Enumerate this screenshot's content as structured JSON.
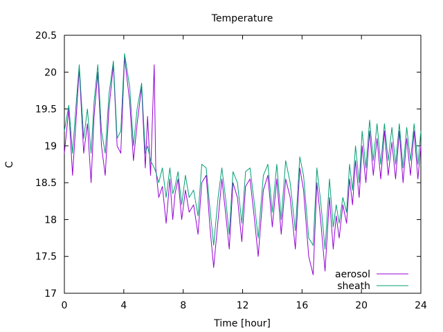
{
  "chart_data": {
    "type": "line",
    "title": "Temperature",
    "xlabel": "Time [hour]",
    "ylabel": "C",
    "xlim": [
      0,
      24
    ],
    "ylim": [
      17,
      20.5
    ],
    "x_ticks": [
      0,
      4,
      8,
      12,
      16,
      20,
      24
    ],
    "x_tick_labels": [
      "0",
      "4",
      "8",
      "12",
      "16",
      "20",
      "24"
    ],
    "y_ticks": [
      17,
      17.5,
      18,
      18.5,
      19,
      19.5,
      20,
      20.5
    ],
    "y_tick_labels": [
      "17",
      "17.5",
      "18",
      "18.5",
      "19",
      "19.5",
      "20",
      "20.5"
    ],
    "grid": false,
    "legend_position": "bottom-right",
    "series": [
      {
        "name": "aerosol",
        "color": "#9400d3",
        "x": [
          0,
          0.3,
          0.55,
          0.8,
          1.0,
          1.3,
          1.55,
          1.8,
          2.0,
          2.25,
          2.5,
          2.75,
          3.0,
          3.3,
          3.55,
          3.8,
          4.05,
          4.4,
          4.65,
          4.9,
          5.2,
          5.45,
          5.6,
          5.8,
          6.05,
          6.15,
          6.35,
          6.6,
          6.85,
          7.1,
          7.3,
          7.45,
          7.65,
          7.9,
          8.15,
          8.4,
          8.7,
          9.0,
          9.25,
          9.55,
          9.8,
          10.05,
          10.35,
          10.6,
          10.85,
          11.1,
          11.35,
          11.65,
          11.95,
          12.2,
          12.5,
          12.8,
          13.05,
          13.4,
          13.7,
          14.0,
          14.3,
          14.6,
          14.9,
          15.2,
          15.55,
          15.85,
          16.1,
          16.45,
          16.75,
          17.0,
          17.25,
          17.55,
          17.85,
          18.1,
          18.3,
          18.5,
          18.75,
          19.0,
          19.2,
          19.4,
          19.6,
          19.85,
          20.05,
          20.3,
          20.55,
          20.8,
          21.05,
          21.3,
          21.55,
          21.8,
          22.05,
          22.3,
          22.55,
          22.8,
          23.05,
          23.3,
          23.55,
          23.8,
          24.0
        ],
        "values": [
          18.9,
          19.5,
          18.6,
          19.4,
          20.05,
          18.9,
          19.3,
          18.5,
          19.4,
          20.0,
          19.0,
          18.6,
          19.5,
          20.1,
          19.0,
          18.9,
          20.2,
          19.6,
          18.8,
          19.3,
          19.8,
          18.7,
          19.4,
          18.6,
          20.1,
          18.7,
          18.3,
          18.45,
          17.95,
          18.55,
          18.0,
          18.35,
          18.55,
          18.0,
          18.4,
          18.1,
          18.2,
          17.8,
          18.5,
          18.6,
          17.9,
          17.35,
          18.0,
          18.55,
          18.1,
          17.6,
          18.5,
          18.3,
          17.7,
          18.45,
          18.55,
          18.0,
          17.5,
          18.4,
          18.6,
          17.9,
          18.55,
          17.8,
          18.55,
          18.3,
          17.6,
          18.7,
          18.4,
          17.5,
          17.25,
          18.5,
          18.0,
          17.3,
          18.3,
          17.6,
          18.05,
          17.75,
          18.2,
          17.95,
          18.55,
          18.2,
          18.8,
          18.3,
          19.0,
          18.5,
          19.2,
          18.6,
          19.1,
          18.55,
          19.2,
          18.6,
          19.05,
          18.55,
          19.2,
          18.5,
          19.1,
          18.6,
          19.2,
          18.55,
          19.0
        ]
      },
      {
        "name": "sheath",
        "color": "#009e73",
        "x": [
          0,
          0.3,
          0.55,
          0.8,
          1.0,
          1.3,
          1.55,
          1.8,
          2.0,
          2.25,
          2.5,
          2.75,
          3.0,
          3.3,
          3.55,
          3.8,
          4.05,
          4.4,
          4.65,
          4.9,
          5.2,
          5.45,
          5.6,
          5.8,
          6.05,
          6.15,
          6.35,
          6.6,
          6.85,
          7.1,
          7.3,
          7.45,
          7.65,
          7.9,
          8.15,
          8.4,
          8.7,
          9.0,
          9.25,
          9.55,
          9.8,
          10.05,
          10.35,
          10.6,
          10.85,
          11.1,
          11.35,
          11.65,
          11.95,
          12.2,
          12.5,
          12.8,
          13.05,
          13.4,
          13.7,
          14.0,
          14.3,
          14.6,
          14.9,
          15.2,
          15.55,
          15.85,
          16.1,
          16.45,
          16.75,
          17.0,
          17.25,
          17.55,
          17.85,
          18.1,
          18.3,
          18.5,
          18.75,
          19.0,
          19.2,
          19.4,
          19.6,
          19.85,
          20.05,
          20.3,
          20.55,
          20.8,
          21.05,
          21.3,
          21.55,
          21.8,
          22.05,
          22.3,
          22.55,
          22.8,
          23.05,
          23.3,
          23.55,
          23.8,
          24.0
        ],
        "values": [
          19.2,
          19.55,
          18.9,
          19.6,
          20.1,
          19.1,
          19.5,
          18.9,
          19.6,
          20.1,
          19.2,
          18.9,
          19.7,
          20.15,
          19.1,
          19.2,
          20.25,
          19.8,
          19.0,
          19.5,
          19.85,
          18.9,
          19.0,
          18.8,
          18.7,
          18.65,
          18.5,
          18.7,
          18.3,
          18.7,
          18.35,
          18.45,
          18.65,
          18.2,
          18.6,
          18.3,
          18.4,
          18.05,
          18.75,
          18.7,
          18.15,
          17.65,
          18.3,
          18.7,
          18.3,
          17.8,
          18.65,
          18.5,
          17.95,
          18.65,
          18.7,
          18.2,
          17.75,
          18.6,
          18.75,
          18.1,
          18.75,
          18.0,
          18.8,
          18.5,
          17.85,
          18.85,
          18.6,
          17.75,
          17.65,
          18.7,
          18.25,
          17.6,
          18.55,
          17.9,
          18.2,
          17.95,
          18.3,
          18.1,
          18.75,
          18.4,
          19.0,
          18.5,
          19.2,
          18.7,
          19.35,
          18.8,
          19.3,
          18.75,
          19.3,
          18.8,
          19.25,
          18.75,
          19.3,
          18.7,
          19.25,
          18.8,
          19.3,
          18.75,
          19.2
        ]
      }
    ]
  }
}
